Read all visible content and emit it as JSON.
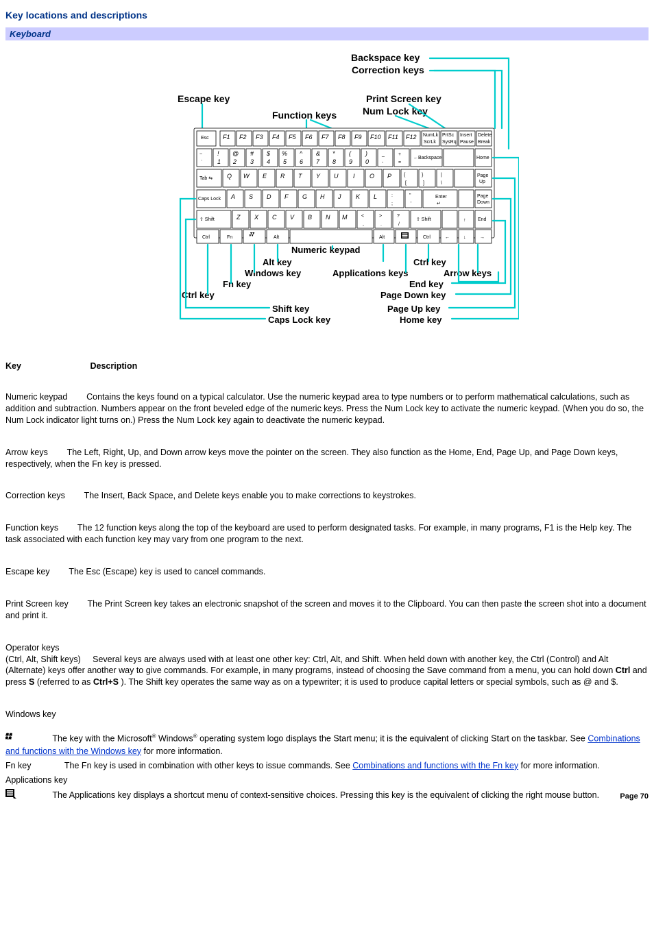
{
  "title": "Key locations and descriptions",
  "section_header": "Keyboard",
  "diagram": {
    "callouts": {
      "backspace": "Backspace key",
      "correction": "Correction keys",
      "escape": "Escape key",
      "function": "Function keys",
      "printscreen": "Print Screen key",
      "numlock": "Num Lock key",
      "numeric_keypad": "Numeric keypad",
      "alt": "Alt key",
      "windows": "Windows key",
      "applications": "Applications keys",
      "ctrl_right": "Ctrl key",
      "arrow": "Arrow keys",
      "fn": "Fn key",
      "end": "End key",
      "ctrl_left": "Ctrl key",
      "pagedown": "Page Down key",
      "shift": "Shift key",
      "pageup": "Page Up key",
      "capslock": "Caps Lock key",
      "home": "Home key"
    },
    "keys": {
      "row1": [
        "Esc",
        "F1",
        "F2",
        "F3",
        "F4",
        "F5",
        "F6",
        "F7",
        "F8",
        "F9",
        "F10",
        "F11",
        "F12",
        "Num Lk Scr Lk",
        "Prt Sc Sys Rq",
        "Insert Pause",
        "Delete Break"
      ],
      "row2_top": [
        "~",
        "!",
        "@",
        "#",
        "$",
        "%",
        "^",
        "&",
        "*",
        "(",
        ")",
        "_",
        "+"
      ],
      "row2_bot": [
        "`",
        "1",
        "2",
        "3",
        "4",
        "5",
        "6",
        "7",
        "8",
        "9",
        "0",
        "-",
        "="
      ],
      "row2_tail": [
        "← Backspace",
        "Home"
      ],
      "row3": [
        "Tab",
        "Q",
        "W",
        "E",
        "R",
        "T",
        "Y",
        "U",
        "I",
        "O",
        "P",
        "{ [",
        "} ]",
        "| \\",
        "Page Up"
      ],
      "row4": [
        "Caps Lock",
        "A",
        "S",
        "D",
        "F",
        "G",
        "H",
        "J",
        "K",
        "L",
        ": ;",
        "\" '",
        "Enter ↵",
        "Page Down"
      ],
      "row5": [
        "Shift",
        "Z",
        "X",
        "C",
        "V",
        "B",
        "N",
        "M",
        "< ,",
        "> .",
        "? /",
        "Shift",
        "↑",
        "End"
      ],
      "row6": [
        "Ctrl",
        "Fn",
        "Win",
        "Alt",
        "Space",
        "Alt",
        "App",
        "Ctrl",
        "←",
        "↓",
        "→"
      ]
    },
    "colors": {
      "leader": "#00cccc",
      "key_border": "#444444",
      "key_fill": "#ffffff"
    }
  },
  "table_headers": {
    "key": "Key",
    "desc": "Description"
  },
  "entries": [
    {
      "key": "Numeric keypad",
      "desc": "Contains the keys found on a typical calculator. Use the numeric keypad area to type numbers or to perform mathematical calculations, such as addition and subtraction. Numbers appear on the front beveled edge of the numeric keys. Press the Num Lock key to activate the numeric keypad. (When you do so, the Num Lock indicator light turns on.) Press the Num Lock key again to deactivate the numeric keypad."
    },
    {
      "key": "Arrow keys",
      "desc": "The Left, Right, Up, and Down arrow keys move the pointer on the screen. They also function as the Home, End, Page Up, and Page Down keys, respectively, when the Fn key is pressed."
    },
    {
      "key": "Correction keys",
      "desc": "The Insert, Back Space, and Delete keys enable you to make corrections to keystrokes."
    },
    {
      "key": "Function keys",
      "desc": "The 12 function keys along the top of the keyboard are used to perform designated tasks. For example, in many programs, F1 is the Help key. The task associated with each function key may vary from one program to the next."
    },
    {
      "key": "Escape key",
      "desc": "The Esc (Escape) key is used to cancel commands."
    },
    {
      "key": "Print Screen key",
      "desc": "The Print Screen key takes an electronic snapshot of the screen and moves it to the Clipboard. You can then paste the screen shot into a document and print it."
    }
  ],
  "operator_entry": {
    "key": "Operator keys",
    "sub": "(Ctrl, Alt, Shift keys)",
    "before": "Several keys are always used with at least one other key: Ctrl, Alt, and Shift. When held down with another key, the Ctrl (Control) and Alt (Alternate) keys offer another way to give commands. For example, in many programs, instead of choosing the Save command from a menu, you can hold down ",
    "b1": "Ctrl",
    "mid1": " and press ",
    "b2": "S",
    "mid2": " (referred to as ",
    "b3": "Ctrl+S ",
    "after": "). The Shift key operates the same way as on a typewriter; it is used to produce capital letters or special symbols, such as @ and $."
  },
  "windows_entry": {
    "key": "Windows key",
    "before": "The key with the Microsoft",
    "reg1": "®",
    "mid1": " Windows",
    "reg2": "®",
    "mid2": " operating system logo displays the Start menu; it is the equivalent of clicking Start on the taskbar. See ",
    "link_text": "Combinations and functions with the Windows key",
    "after": " for more information."
  },
  "fn_entry": {
    "key": "Fn key",
    "before": "The Fn key is used in combination with other keys to issue commands. See ",
    "link_text": "Combinations and functions with the Fn key",
    "after": " for more information."
  },
  "apps_entry": {
    "key": "Applications key",
    "desc": "The Applications key displays a shortcut menu of context-sensitive choices. Pressing this key is the equivalent of clicking the right mouse button."
  },
  "page_footer": "Page 70"
}
